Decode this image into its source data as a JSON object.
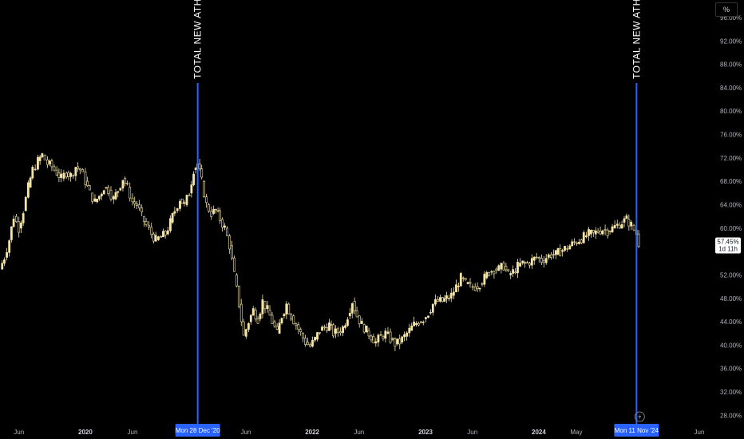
{
  "unit_button": "%",
  "colors": {
    "background": "#000000",
    "candle": "#f5e6a8",
    "marker_line": "#2962ff",
    "marker_label_bg": "#2962ff",
    "price_tag_bg": "#ffffff"
  },
  "price_tag": {
    "value": "57.45%",
    "countdown": "1d 11h"
  },
  "flash_icon": "lightning-bolt-icon",
  "chart_data": {
    "type": "candlestick",
    "title": "",
    "y_unit": "%",
    "ylim": [
      26,
      99
    ],
    "yticks": [
      "96.00%",
      "92.00%",
      "88.00%",
      "84.00%",
      "80.00%",
      "76.00%",
      "72.00%",
      "68.00%",
      "64.00%",
      "60.00%",
      "52.00%",
      "48.00%",
      "44.00%",
      "40.00%",
      "36.00%",
      "32.00%",
      "28.00%"
    ],
    "xlim": [
      "2019-04-01",
      "2025-07-15"
    ],
    "xticks": [
      {
        "date": "2019-06-01",
        "label": "Jun",
        "bold": false
      },
      {
        "date": "2020-01-01",
        "label": "2020",
        "bold": true
      },
      {
        "date": "2020-06-01",
        "label": "Jun",
        "bold": false
      },
      {
        "date": "2021-06-01",
        "label": "Jun",
        "bold": false
      },
      {
        "date": "2022-01-01",
        "label": "2022",
        "bold": true
      },
      {
        "date": "2022-06-01",
        "label": "Jun",
        "bold": false
      },
      {
        "date": "2023-01-01",
        "label": "2023",
        "bold": true
      },
      {
        "date": "2023-06-01",
        "label": "Jun",
        "bold": false
      },
      {
        "date": "2024-01-01",
        "label": "2024",
        "bold": true
      },
      {
        "date": "2024-05-01",
        "label": "May",
        "bold": false
      },
      {
        "date": "2025-06-01",
        "label": "Jun",
        "bold": false
      }
    ],
    "markers": [
      {
        "date": "2020-12-28",
        "label": "Mon 28 Dec '20",
        "annotation": "TOTAL NEW ATH"
      },
      {
        "date": "2024-11-11",
        "label": "Mon 11 Nov '24",
        "annotation": "TOTAL NEW ATH"
      }
    ],
    "series": [
      {
        "values": [
          [
            "2019-04-01",
            53
          ],
          [
            "2019-04-15",
            55
          ],
          [
            "2019-05-01",
            58
          ],
          [
            "2019-05-15",
            62
          ],
          [
            "2019-06-01",
            60
          ],
          [
            "2019-06-15",
            63
          ],
          [
            "2019-07-01",
            67
          ],
          [
            "2019-07-15",
            70
          ],
          [
            "2019-08-01",
            71.5
          ],
          [
            "2019-08-15",
            72.5
          ],
          [
            "2019-09-01",
            71
          ],
          [
            "2019-09-15",
            70.5
          ],
          [
            "2019-10-01",
            69.5
          ],
          [
            "2019-10-15",
            68.5
          ],
          [
            "2019-11-01",
            69.5
          ],
          [
            "2019-11-15",
            69
          ],
          [
            "2019-12-01",
            70.5
          ],
          [
            "2019-12-15",
            70
          ],
          [
            "2020-01-01",
            68
          ],
          [
            "2020-01-15",
            66
          ],
          [
            "2020-02-01",
            64.5
          ],
          [
            "2020-02-15",
            65.5
          ],
          [
            "2020-03-01",
            67
          ],
          [
            "2020-03-15",
            66.5
          ],
          [
            "2020-04-01",
            65
          ],
          [
            "2020-04-15",
            66.5
          ],
          [
            "2020-05-01",
            68.5
          ],
          [
            "2020-05-15",
            67
          ],
          [
            "2020-06-01",
            64.5
          ],
          [
            "2020-06-15",
            64
          ],
          [
            "2020-07-01",
            62
          ],
          [
            "2020-07-15",
            60.5
          ],
          [
            "2020-08-01",
            59
          ],
          [
            "2020-08-15",
            58
          ],
          [
            "2020-09-01",
            58.5
          ],
          [
            "2020-09-15",
            59
          ],
          [
            "2020-10-01",
            61
          ],
          [
            "2020-10-15",
            63
          ],
          [
            "2020-11-01",
            65
          ],
          [
            "2020-11-15",
            64
          ],
          [
            "2020-12-01",
            66
          ],
          [
            "2020-12-15",
            70
          ],
          [
            "2020-12-28",
            71
          ],
          [
            "2021-01-10",
            68
          ],
          [
            "2021-01-25",
            64
          ],
          [
            "2021-02-10",
            62.5
          ],
          [
            "2021-02-25",
            63
          ],
          [
            "2021-03-10",
            61.5
          ],
          [
            "2021-03-25",
            60
          ],
          [
            "2021-04-10",
            57
          ],
          [
            "2021-04-25",
            52
          ],
          [
            "2021-05-10",
            47
          ],
          [
            "2021-05-25",
            41.5
          ],
          [
            "2021-06-10",
            44
          ],
          [
            "2021-06-25",
            46
          ],
          [
            "2021-07-10",
            44.5
          ],
          [
            "2021-07-25",
            47.5
          ],
          [
            "2021-08-10",
            46
          ],
          [
            "2021-08-25",
            44
          ],
          [
            "2021-09-10",
            42
          ],
          [
            "2021-09-25",
            45
          ],
          [
            "2021-10-10",
            47
          ],
          [
            "2021-10-25",
            45
          ],
          [
            "2021-11-10",
            43.5
          ],
          [
            "2021-11-25",
            42
          ],
          [
            "2021-12-10",
            40.5
          ],
          [
            "2021-12-25",
            39.8
          ],
          [
            "2022-01-10",
            41
          ],
          [
            "2022-01-25",
            42.5
          ],
          [
            "2022-02-10",
            43
          ],
          [
            "2022-02-25",
            43.5
          ],
          [
            "2022-03-10",
            42
          ],
          [
            "2022-03-25",
            42.3
          ],
          [
            "2022-04-10",
            43
          ],
          [
            "2022-04-25",
            45
          ],
          [
            "2022-05-10",
            47.5
          ],
          [
            "2022-05-25",
            45
          ],
          [
            "2022-06-10",
            43.5
          ],
          [
            "2022-06-25",
            42.5
          ],
          [
            "2022-07-10",
            41.5
          ],
          [
            "2022-07-25",
            40.5
          ],
          [
            "2022-08-10",
            41.5
          ],
          [
            "2022-08-25",
            42
          ],
          [
            "2022-09-10",
            41
          ],
          [
            "2022-09-25",
            40.2
          ],
          [
            "2022-10-10",
            40.5
          ],
          [
            "2022-10-25",
            41.5
          ],
          [
            "2022-11-10",
            42.5
          ],
          [
            "2022-11-25",
            43.5
          ],
          [
            "2022-12-10",
            44
          ],
          [
            "2022-12-25",
            44.5
          ],
          [
            "2023-01-10",
            45.5
          ],
          [
            "2023-01-25",
            47
          ],
          [
            "2023-02-10",
            47.5
          ],
          [
            "2023-02-25",
            47.5
          ],
          [
            "2023-03-10",
            48
          ],
          [
            "2023-03-25",
            48.5
          ],
          [
            "2023-04-10",
            50
          ],
          [
            "2023-04-25",
            51.5
          ],
          [
            "2023-05-10",
            50.5
          ],
          [
            "2023-05-25",
            50
          ],
          [
            "2023-06-10",
            50
          ],
          [
            "2023-06-25",
            50.5
          ],
          [
            "2023-07-10",
            51.5
          ],
          [
            "2023-07-25",
            52.5
          ],
          [
            "2023-08-10",
            53
          ],
          [
            "2023-08-25",
            53
          ],
          [
            "2023-09-10",
            53.5
          ],
          [
            "2023-09-25",
            52
          ],
          [
            "2023-10-10",
            52.5
          ],
          [
            "2023-10-25",
            53.5
          ],
          [
            "2023-11-10",
            54
          ],
          [
            "2023-11-25",
            54
          ],
          [
            "2023-12-10",
            54.5
          ],
          [
            "2023-12-25",
            55
          ],
          [
            "2024-01-10",
            54.5
          ],
          [
            "2024-01-25",
            55
          ],
          [
            "2024-02-10",
            55.5
          ],
          [
            "2024-02-25",
            55.5
          ],
          [
            "2024-03-10",
            56
          ],
          [
            "2024-03-25",
            56.5
          ],
          [
            "2024-04-10",
            57
          ],
          [
            "2024-04-25",
            57.5
          ],
          [
            "2024-05-10",
            58
          ],
          [
            "2024-05-25",
            58.5
          ],
          [
            "2024-06-10",
            59
          ],
          [
            "2024-06-25",
            59
          ],
          [
            "2024-07-10",
            59.5
          ],
          [
            "2024-07-25",
            59.8
          ],
          [
            "2024-08-10",
            59.5
          ],
          [
            "2024-08-25",
            60
          ],
          [
            "2024-09-10",
            60.5
          ],
          [
            "2024-09-25",
            61
          ],
          [
            "2024-10-10",
            61.5
          ],
          [
            "2024-10-25",
            60.5
          ],
          [
            "2024-11-11",
            59
          ],
          [
            "2024-11-18",
            57.45
          ]
        ]
      }
    ]
  }
}
